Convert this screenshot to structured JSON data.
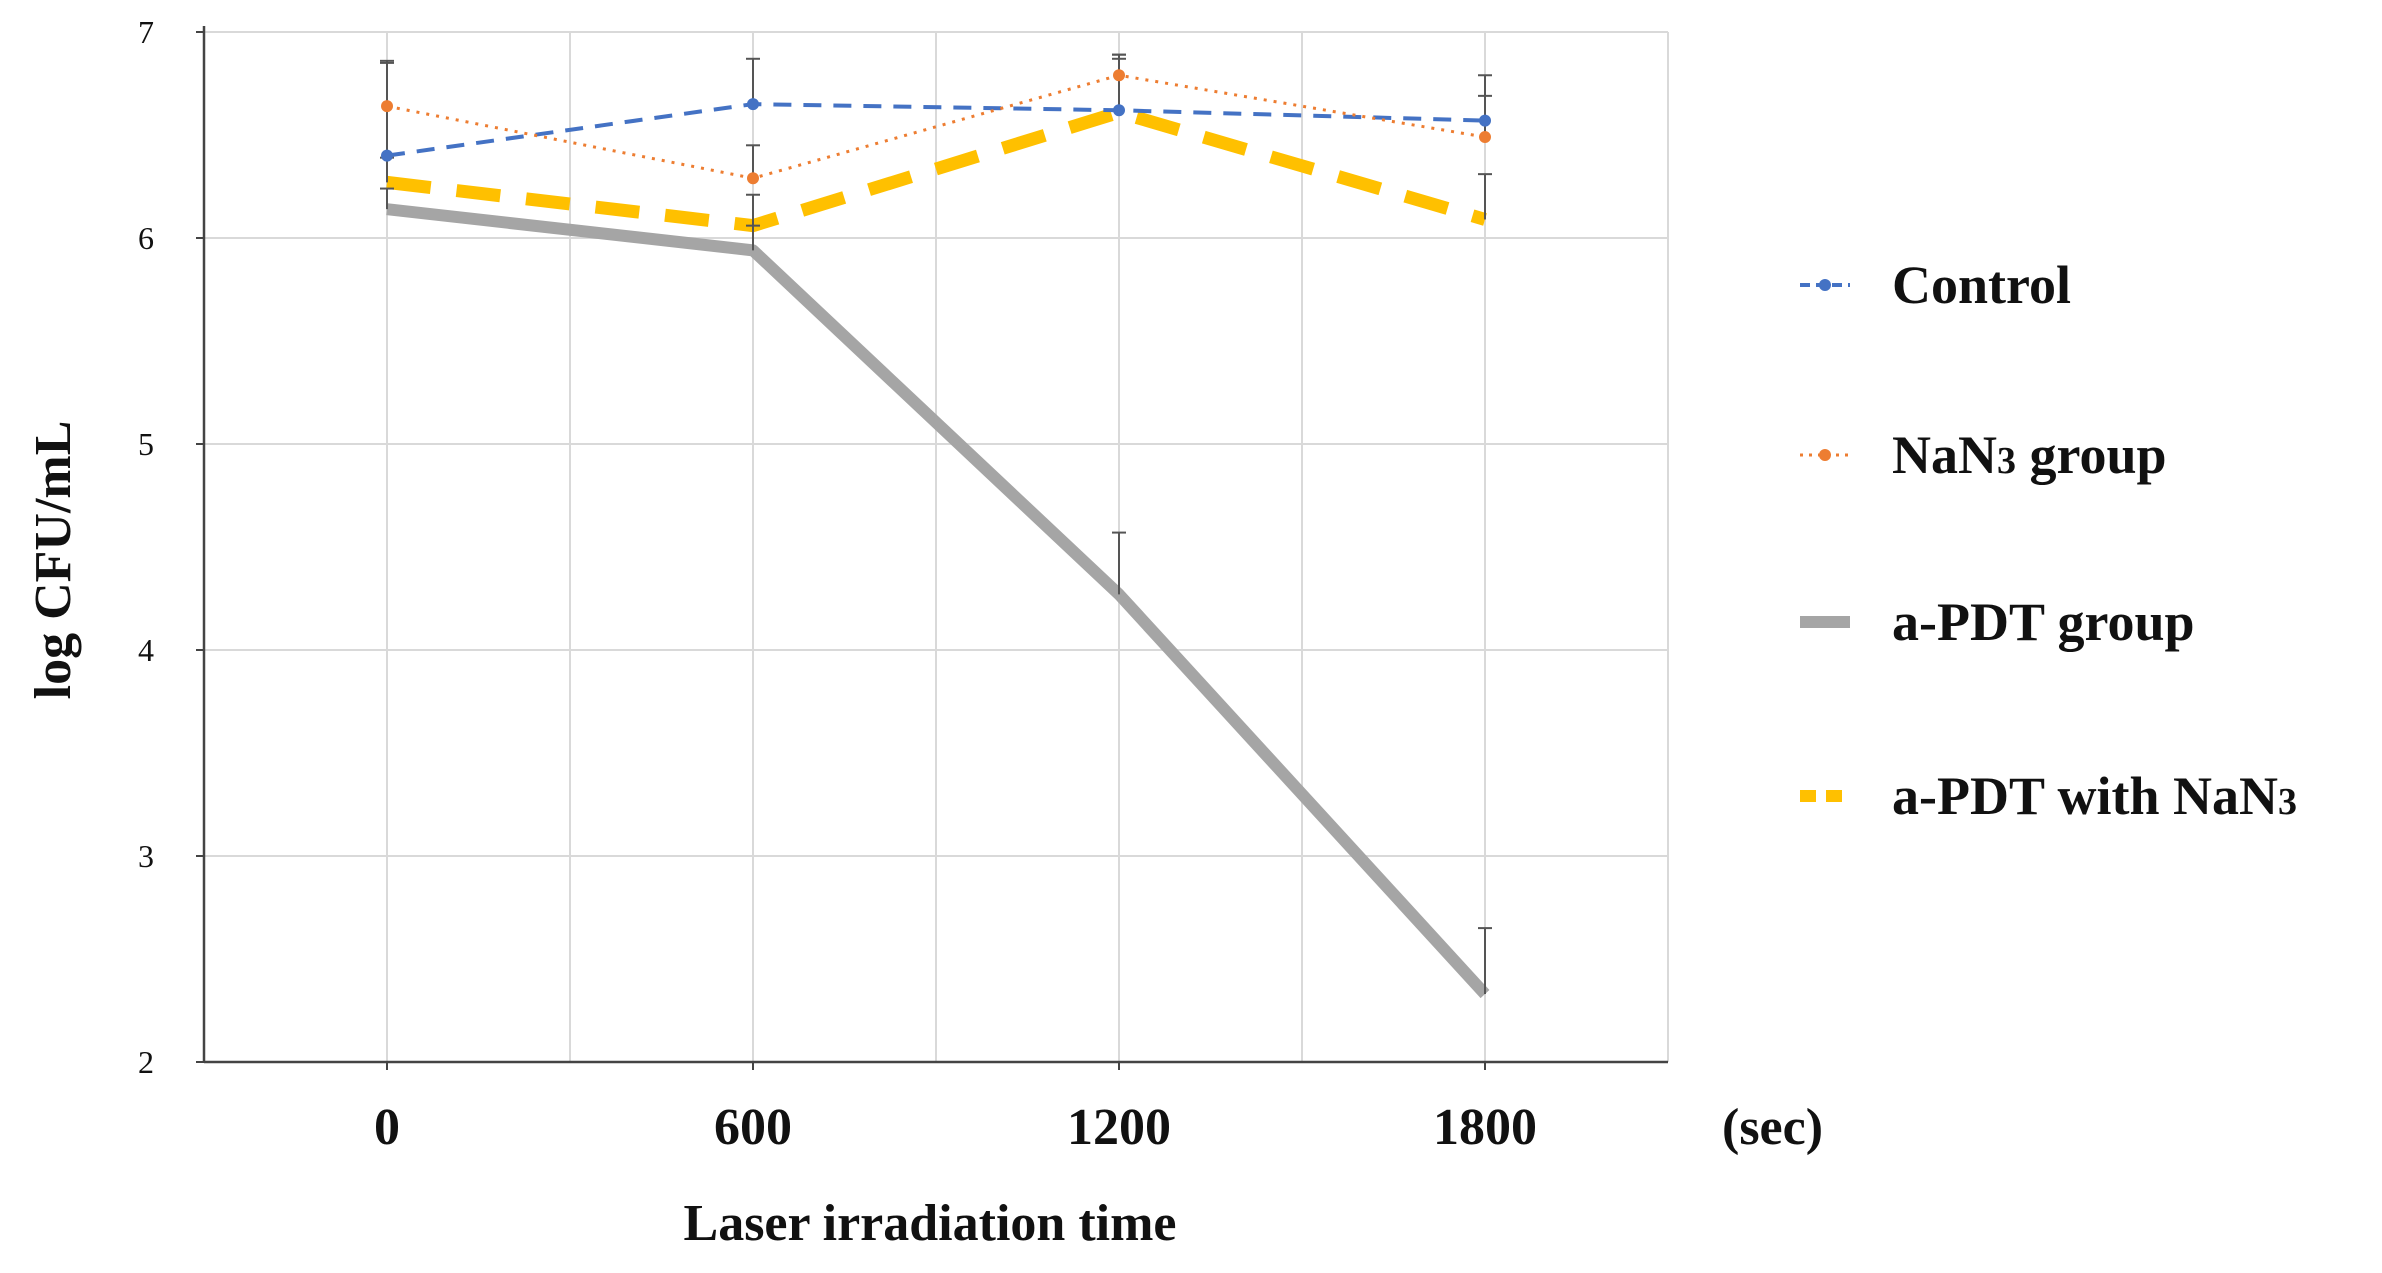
{
  "chart_data": {
    "type": "line",
    "xlabel": "Laser irradiation time",
    "x_unit": "(sec)",
    "ylabel": "log CFU/mL",
    "x": [
      0,
      600,
      1200,
      1800
    ],
    "x_tick_labels": [
      "0",
      "600",
      "1200",
      "1800"
    ],
    "xlim": [
      -300,
      2100
    ],
    "ylim": [
      2,
      7
    ],
    "y_ticks": [
      2,
      3,
      4,
      5,
      6,
      7
    ],
    "grid": true,
    "legend_position": "right",
    "series": [
      {
        "name": "Control",
        "label_main": "Control",
        "label_sub": "",
        "label_tail": "",
        "values": [
          6.4,
          6.65,
          6.62,
          6.57
        ],
        "error": [
          0.45,
          0.22,
          0.25,
          0.22
        ],
        "color": "#4472c4",
        "style": "dashed-markers"
      },
      {
        "name": "NaN3 group",
        "label_main": "NaN",
        "label_sub": "3",
        "label_tail": " group",
        "values": [
          6.64,
          6.29,
          6.79,
          6.49
        ],
        "error": [
          0.22,
          0.16,
          0.1,
          0.2
        ],
        "color": "#ed7d31",
        "style": "dotted-markers"
      },
      {
        "name": "a-PDT group",
        "label_main": "a-PDT group",
        "label_sub": "",
        "label_tail": "",
        "values": [
          6.14,
          5.94,
          4.27,
          2.33
        ],
        "error": [
          0.1,
          0.12,
          0.3,
          0.32
        ],
        "color": "#a5a5a5",
        "style": "solid-thick"
      },
      {
        "name": "a-PDT with NaN3",
        "label_main": "a-PDT with NaN",
        "label_sub": "3",
        "label_tail": "",
        "values": [
          6.27,
          6.06,
          6.61,
          6.09
        ],
        "error": [
          0.12,
          0.15,
          0.28,
          0.22
        ],
        "color": "#ffc000",
        "style": "dashed-thick"
      }
    ]
  }
}
